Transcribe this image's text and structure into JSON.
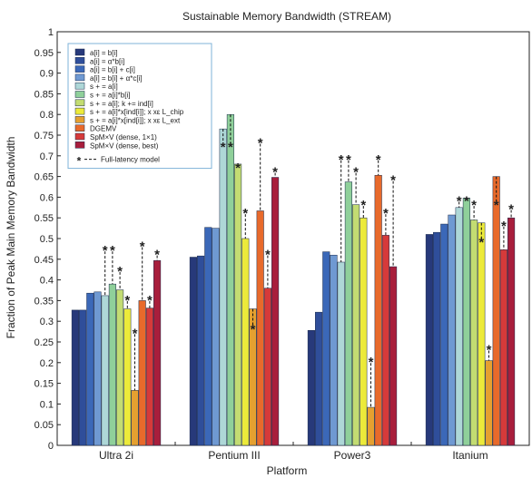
{
  "chart_data": {
    "type": "bar",
    "title": "Sustainable Memory Bandwidth (STREAM)",
    "xlabel": "Platform",
    "ylabel": "Fraction of Peak Main Memory Bandwidth",
    "ylim": [
      0,
      1
    ],
    "yticks": [
      "0",
      "0.05",
      "0.1",
      "0.15",
      "0.2",
      "0.25",
      "0.3",
      "0.35",
      "0.4",
      "0.45",
      "0.5",
      "0.55",
      "0.6",
      "0.65",
      "0.7",
      "0.75",
      "0.8",
      "0.85",
      "0.9",
      "0.95",
      "1"
    ],
    "grid": false,
    "legend_position": "top-left",
    "categories": [
      "Ultra 2i",
      "Pentium III",
      "Power3",
      "Itanium"
    ],
    "series": [
      {
        "name": "a[i] = b[i]",
        "color": "#27397a",
        "values": [
          0.327,
          0.455,
          0.278,
          0.51
        ]
      },
      {
        "name": "a[i] = α*b[i]",
        "color": "#2f4e9a",
        "values": [
          0.327,
          0.458,
          0.322,
          0.515
        ]
      },
      {
        "name": "a[i] = b[i] + c[i]",
        "color": "#3b68b8",
        "values": [
          0.368,
          0.527,
          0.468,
          0.535
        ]
      },
      {
        "name": "a[i] = b[i] + α*c[i]",
        "color": "#6f99d2",
        "values": [
          0.371,
          0.525,
          0.46,
          0.557
        ]
      },
      {
        "name": "s + = a[i]",
        "color": "#aed7d7",
        "values": [
          0.362,
          0.765,
          0.443,
          0.575
        ]
      },
      {
        "name": "s + = a[i]*b[i]",
        "color": "#8fd09a",
        "values": [
          0.39,
          0.8,
          0.637,
          0.598
        ]
      },
      {
        "name": "s + = a[i]; k += ind[i]",
        "color": "#c3dc72",
        "values": [
          0.376,
          0.68,
          0.582,
          0.545
        ]
      },
      {
        "name": "s + = a[i]*x[ind[i]]; x xε L_chip",
        "color": "#ecea3a",
        "values": [
          0.33,
          0.5,
          0.55,
          0.538
        ]
      },
      {
        "name": "s + = a[i]*x[ind[i]]; x xε L_ext",
        "color": "#e5a030",
        "values": [
          0.133,
          0.33,
          0.092,
          0.205
        ]
      },
      {
        "name": "DGEMV",
        "color": "#e86a2b",
        "values": [
          0.35,
          0.567,
          0.653,
          0.65
        ]
      },
      {
        "name": "SpM×V (dense, 1×1)",
        "color": "#d63a3a",
        "values": [
          0.332,
          0.38,
          0.508,
          0.473
        ]
      },
      {
        "name": "SpM×V (dense, best)",
        "color": "#a81e3c",
        "values": [
          0.447,
          0.648,
          0.432,
          0.55
        ]
      }
    ],
    "model": {
      "name": "Full-latency model",
      "values": [
        [
          null,
          null,
          null,
          null,
          0.48,
          0.48,
          0.43,
          0.36,
          0.28,
          0.49,
          0.36,
          0.47
        ],
        [
          null,
          null,
          null,
          null,
          0.73,
          0.73,
          0.68,
          0.57,
          0.29,
          0.74,
          0.47,
          0.67
        ],
        [
          null,
          null,
          null,
          null,
          0.7,
          0.7,
          0.67,
          0.59,
          0.21,
          0.7,
          0.57,
          0.65
        ],
        [
          null,
          null,
          null,
          null,
          0.6,
          0.6,
          0.59,
          0.5,
          0.24,
          0.59,
          0.54,
          0.58
        ]
      ]
    }
  }
}
